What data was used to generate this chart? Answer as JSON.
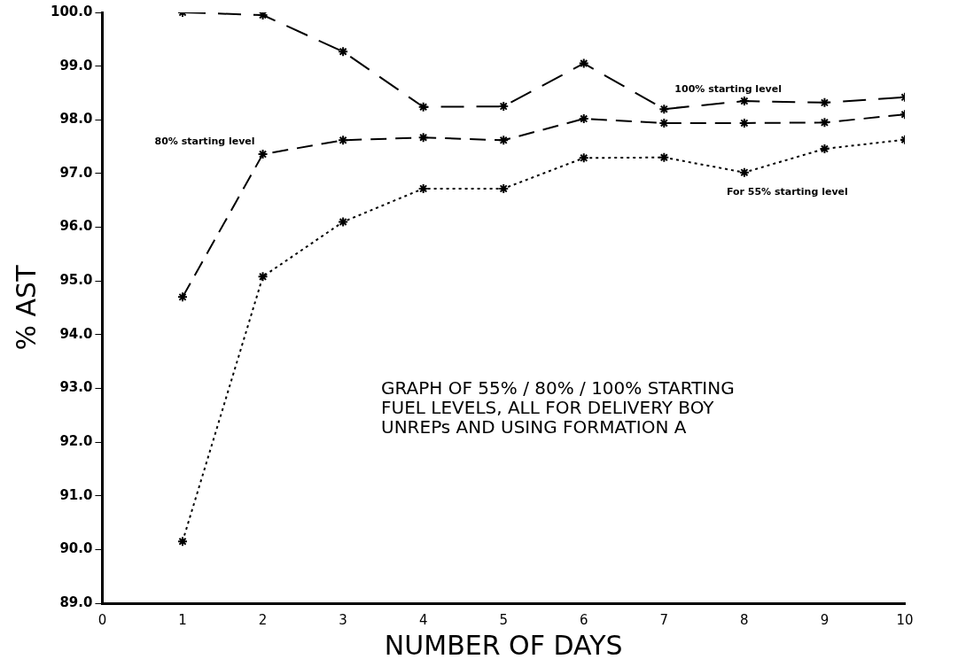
{
  "chart_data": {
    "type": "line",
    "xlabel": "NUMBER OF DAYS",
    "ylabel": "% AST",
    "x": [
      1,
      2,
      3,
      4,
      5,
      6,
      7,
      8,
      9,
      10
    ],
    "series": [
      {
        "name": "100% starting level",
        "color": "#000000",
        "line_style": "dashed",
        "values": [
          100.0,
          99.95,
          99.27,
          98.24,
          98.25,
          99.05,
          98.2,
          98.35,
          98.32,
          98.42
        ]
      },
      {
        "name": "80% starting level",
        "color": "#000000",
        "line_style": "dashed",
        "values": [
          94.7,
          97.36,
          97.62,
          97.67,
          97.62,
          98.02,
          97.94,
          97.94,
          97.95,
          98.1
        ]
      },
      {
        "name": "For 55% starting level",
        "color": "#000000",
        "line_style": "dotted",
        "values": [
          90.15,
          95.08,
          96.1,
          96.72,
          96.72,
          97.29,
          97.3,
          97.02,
          97.46,
          97.63
        ]
      }
    ],
    "xlim": [
      0,
      10
    ],
    "xticks": [
      0,
      1,
      2,
      3,
      4,
      5,
      6,
      7,
      8,
      9,
      10
    ],
    "ylim": [
      89,
      100
    ],
    "yticks": [
      {
        "value": 89,
        "label": "89.0"
      },
      {
        "value": 90,
        "label": "90.0"
      },
      {
        "value": 91,
        "label": "91.0"
      },
      {
        "value": 92,
        "label": "92.0"
      },
      {
        "value": 93,
        "label": "93.0"
      },
      {
        "value": 94,
        "label": "94.0"
      },
      {
        "value": 95,
        "label": "95.0"
      },
      {
        "value": 96,
        "label": "96.0"
      },
      {
        "value": 97,
        "label": "97.0"
      },
      {
        "value": 98,
        "label": "98.0"
      },
      {
        "value": 99,
        "label": "99.0"
      },
      {
        "value": 100,
        "label": "100.0"
      }
    ],
    "grid": false,
    "legend": false,
    "marker": "cross",
    "annotations": [
      "GRAPH OF 55% / 80% / 100% STARTING FUEL LEVELS, ALL FOR DELIVERY BOY UNREPs AND USING FORMATION A"
    ]
  }
}
